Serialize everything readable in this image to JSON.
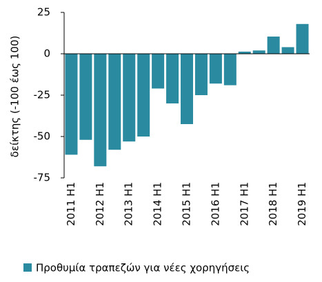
{
  "chart_data": {
    "type": "bar",
    "y_label": "δείκτης (-100 έως 100)",
    "categories": [
      "2011 H1",
      null,
      "2012 H1",
      null,
      "2013 H1",
      null,
      "2014 H1",
      null,
      "2015 H1",
      null,
      "2016 H1",
      null,
      "2017 H1",
      null,
      "2018 H1",
      null,
      "2019 H1"
    ],
    "series": [
      {
        "name": "Προθυμία τραπεζών για νέες χορηγήσεις",
        "color": "#2a8a9f",
        "values": [
          -61,
          -52,
          -68,
          -58,
          -53,
          -50,
          -21,
          -30,
          -42.5,
          -25,
          -18,
          -19,
          1.3,
          2,
          10.4,
          4,
          18
        ]
      }
    ],
    "ylim": [
      -75,
      25
    ],
    "yticks": [
      -75,
      -50,
      -25,
      0,
      25
    ],
    "legend": "bottom"
  }
}
